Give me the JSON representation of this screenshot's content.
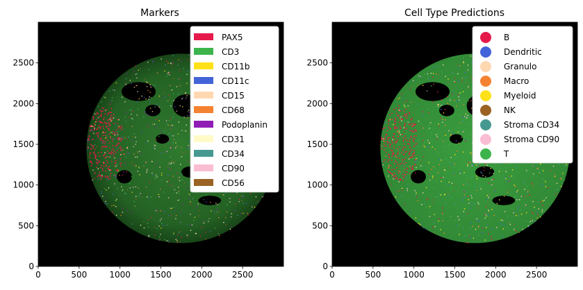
{
  "charts": [
    {
      "title": "Markers",
      "legend_type": "patch",
      "legend_placement": "upper-right",
      "legend": [
        {
          "label": "PAX5",
          "color": "#e6194b"
        },
        {
          "label": "CD3",
          "color": "#3cb44b"
        },
        {
          "label": "CD11b",
          "color": "#ffe119"
        },
        {
          "label": "CD11c",
          "color": "#4363d8"
        },
        {
          "label": "CD15",
          "color": "#ffd8b1"
        },
        {
          "label": "CD68",
          "color": "#f58231"
        },
        {
          "label": "Podoplanin",
          "color": "#911eb4"
        },
        {
          "label": "CD31",
          "color": "#fffac8"
        },
        {
          "label": "CD34",
          "color": "#469990"
        },
        {
          "label": "CD90",
          "color": "#fabed4"
        },
        {
          "label": "CD56",
          "color": "#9a6324"
        }
      ]
    },
    {
      "title": "Cell Type Predictions",
      "legend_type": "circle",
      "legend_placement": "upper-right",
      "legend": [
        {
          "label": "B",
          "color": "#e6194b"
        },
        {
          "label": "Dendritic",
          "color": "#4363d8"
        },
        {
          "label": "Granulo",
          "color": "#ffd8b1"
        },
        {
          "label": "Macro",
          "color": "#f58231"
        },
        {
          "label": "Myeloid",
          "color": "#ffe119"
        },
        {
          "label": "NK",
          "color": "#9a6324"
        },
        {
          "label": "Stroma CD34",
          "color": "#469990"
        },
        {
          "label": "Stroma CD90",
          "color": "#fabed4"
        },
        {
          "label": "T",
          "color": "#3cb44b"
        }
      ]
    }
  ],
  "chart_data": [
    {
      "type": "heatmap",
      "title": "Markers",
      "xlim": [
        0,
        3000
      ],
      "ylim": [
        0,
        3000
      ],
      "xticks": [
        0,
        500,
        1000,
        1500,
        2000,
        2500
      ],
      "yticks": [
        0,
        500,
        1000,
        1500,
        2000,
        2500
      ],
      "tissue_center": [
        1750,
        1450
      ],
      "tissue_radius": 1160,
      "background": "#000000",
      "dominant_color": "#3cb44b"
    },
    {
      "type": "heatmap",
      "title": "Cell Type Predictions",
      "xlim": [
        0,
        3000
      ],
      "ylim": [
        0,
        3000
      ],
      "xticks": [
        0,
        500,
        1000,
        1500,
        2000,
        2500
      ],
      "yticks": [
        0,
        500,
        1000,
        1500,
        2000,
        2500
      ],
      "tissue_center": [
        1750,
        1450
      ],
      "tissue_radius": 1160,
      "background": "#000000",
      "dominant_color": "#3cb44b"
    }
  ]
}
